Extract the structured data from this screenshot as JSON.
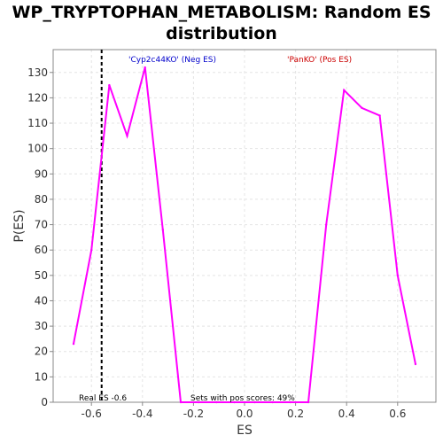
{
  "title_line1": "WP_TRYPTOPHAN_METABOLISM: Random ES",
  "title_line2": "distribution",
  "chart_data": {
    "type": "line",
    "title": "WP_TRYPTOPHAN_METABOLISM: Random ES distribution",
    "xlabel": "ES",
    "ylabel": "P(ES)",
    "xlim": [
      -0.75,
      0.75
    ],
    "ylim": [
      0,
      139
    ],
    "xticks": [
      -0.6,
      -0.4,
      -0.2,
      0.0,
      0.2,
      0.4,
      0.6
    ],
    "xtick_labels": [
      "-0.6",
      "-0.4",
      "-0.2",
      "0.0",
      "0.2",
      "0.4",
      "0.6"
    ],
    "yticks": [
      0,
      10,
      20,
      30,
      40,
      50,
      60,
      70,
      80,
      90,
      100,
      110,
      120,
      130
    ],
    "grid": true,
    "line_color": "#ff00ff",
    "series": [
      {
        "x": [
          -0.67,
          -0.6,
          -0.53,
          -0.46,
          -0.39,
          -0.32,
          -0.25,
          -0.18,
          -0.11,
          -0.04,
          0.04,
          0.11,
          0.18,
          0.25,
          0.32,
          0.39,
          0.46,
          0.53,
          0.6,
          0.67
        ],
        "values": [
          23,
          60,
          125,
          105,
          132,
          68,
          0,
          0,
          0,
          0,
          0,
          0,
          0,
          0,
          70,
          123,
          116,
          113,
          50,
          15
        ]
      }
    ],
    "real_es": -0.56,
    "annotations": {
      "neg_label": "'Cyp2c44KO' (Neg ES)",
      "neg_color": "#0000cc",
      "pos_label": "'PanKO' (Pos ES)",
      "pos_color": "#cc0000",
      "real_es_label": "Real ES -0.6",
      "pos_scores_label": "Sets with pos scores: 49%"
    }
  }
}
